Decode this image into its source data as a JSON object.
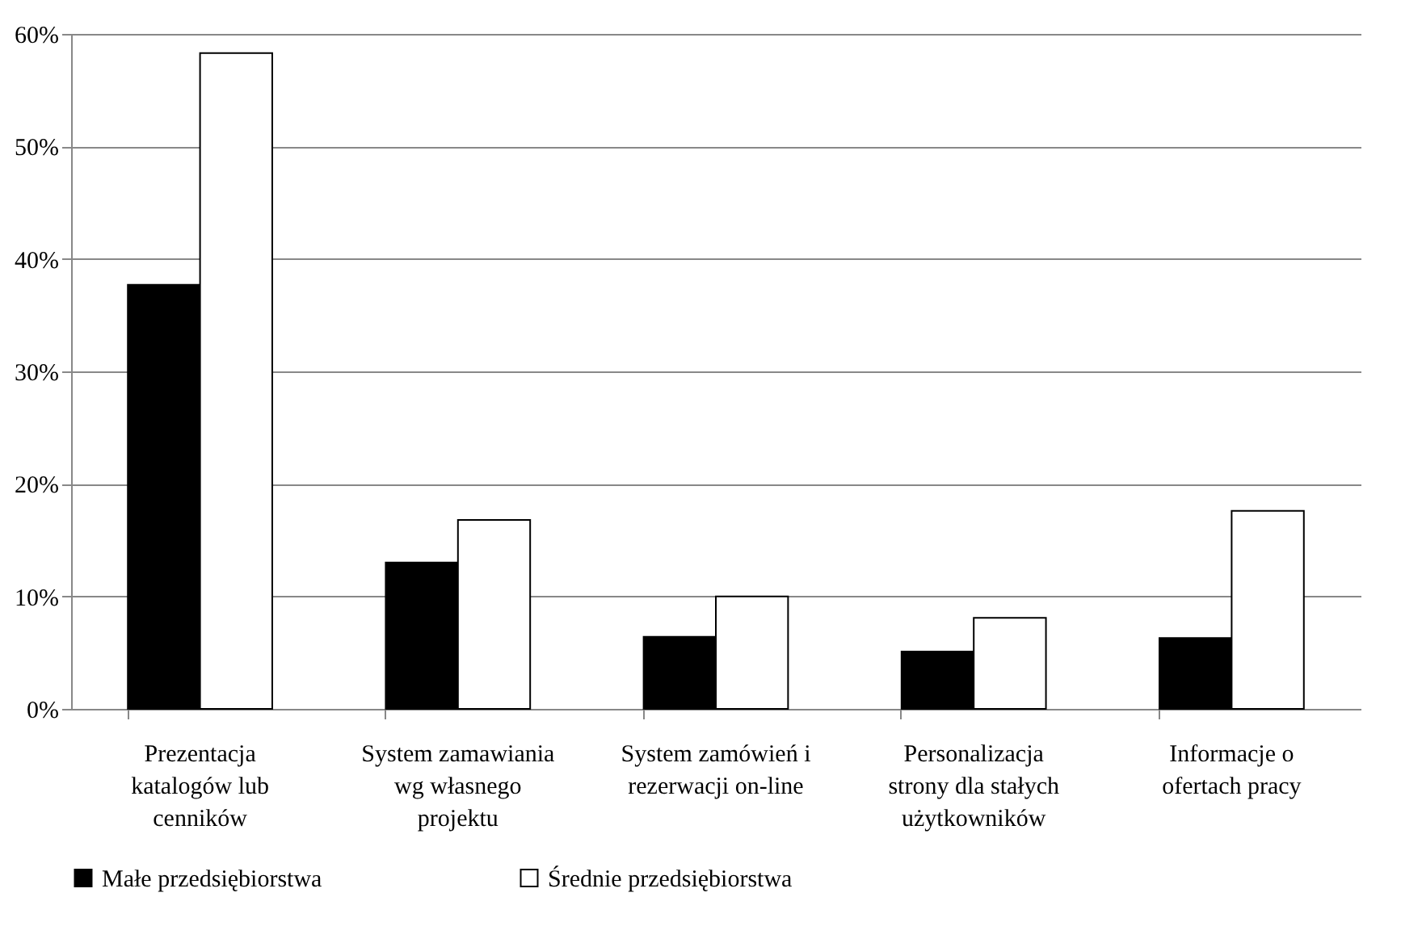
{
  "chart_data": {
    "type": "bar",
    "categories": [
      "Prezentacja katalogów lub cenników",
      "System zamawiania wg własnego projektu",
      "System zamówień i rezerwacji on-line",
      "Personalizacja strony dla stałych użytkowników",
      "Informacje o ofertach pracy"
    ],
    "series": [
      {
        "name": "Małe przedsiębiorstwa",
        "color": "#000000",
        "values": [
          37.7,
          13.0,
          6.4,
          5.1,
          6.3
        ]
      },
      {
        "name": "Średnie przedsiębiorstwa",
        "color": "#ffffff",
        "values": [
          58.3,
          16.8,
          10.0,
          8.1,
          17.6
        ]
      }
    ],
    "ylim": [
      0,
      60
    ],
    "yticks": [
      {
        "value": 0,
        "label": "0%"
      },
      {
        "value": 10,
        "label": "10%"
      },
      {
        "value": 20,
        "label": "20%"
      },
      {
        "value": 30,
        "label": "30%"
      },
      {
        "value": 40,
        "label": "40%"
      },
      {
        "value": 50,
        "label": "50%"
      },
      {
        "value": 60,
        "label": "60%"
      }
    ],
    "grid": "y",
    "legend": "bottom"
  }
}
